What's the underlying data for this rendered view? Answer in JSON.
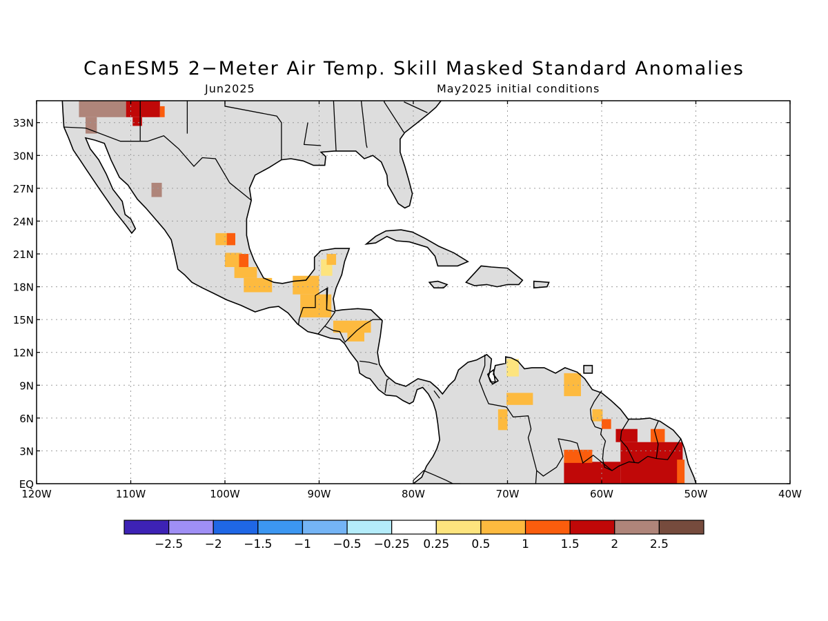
{
  "title": "CanESM5 2−Meter Air Temp. Skill Masked Standard Anomalies",
  "subtitle_left": "Jun2025",
  "subtitle_right": "May2025 initial conditions",
  "map_extent": {
    "lon": [
      -120,
      -40
    ],
    "lat": [
      0,
      35
    ]
  },
  "lat_ticks": [
    {
      "value": 33,
      "label": "33N"
    },
    {
      "value": 30,
      "label": "30N"
    },
    {
      "value": 27,
      "label": "27N"
    },
    {
      "value": 24,
      "label": "24N"
    },
    {
      "value": 21,
      "label": "21N"
    },
    {
      "value": 18,
      "label": "18N"
    },
    {
      "value": 15,
      "label": "15N"
    },
    {
      "value": 12,
      "label": "12N"
    },
    {
      "value": 9,
      "label": "9N"
    },
    {
      "value": 6,
      "label": "6N"
    },
    {
      "value": 3,
      "label": "3N"
    },
    {
      "value": 0,
      "label": "EQ"
    }
  ],
  "lon_ticks": [
    {
      "value": -120,
      "label": "120W"
    },
    {
      "value": -110,
      "label": "110W"
    },
    {
      "value": -100,
      "label": "100W"
    },
    {
      "value": -90,
      "label": "90W"
    },
    {
      "value": -80,
      "label": "80W"
    },
    {
      "value": -70,
      "label": "70W"
    },
    {
      "value": -60,
      "label": "60W"
    },
    {
      "value": -50,
      "label": "50W"
    },
    {
      "value": -40,
      "label": "40W"
    }
  ],
  "colorbar": {
    "colors": [
      "#3d22b5",
      "#9f8ff5",
      "#1f67e6",
      "#3c97f2",
      "#74b4f5",
      "#b4ecfa",
      "#ffffff",
      "#fde47e",
      "#fdba3f",
      "#fb5d0d",
      "#c00808",
      "#af857a",
      "#764b3d"
    ],
    "labels": [
      "−2.5",
      "−2",
      "−1.5",
      "−1",
      "−0.5",
      "−0.25",
      "0.25",
      "0.5",
      "1",
      "1.5",
      "2",
      "2.5"
    ]
  },
  "colors": {
    "land_masked": "#dddddd",
    "frame": "#000000",
    "grid": "#9a9a9a"
  },
  "anomaly_cells": [
    {
      "lon": -115.5,
      "lat": 33.5,
      "w": 5,
      "h": 1.5,
      "color": "#af857a"
    },
    {
      "lon": -114.8,
      "lat": 32.0,
      "w": 1.2,
      "h": 1.5,
      "color": "#af857a"
    },
    {
      "lon": -110.5,
      "lat": 33.5,
      "w": 3.6,
      "h": 1.5,
      "color": "#c00808"
    },
    {
      "lon": -109.8,
      "lat": 32.7,
      "w": 1.0,
      "h": 0.8,
      "color": "#c00808"
    },
    {
      "lon": -106.9,
      "lat": 33.5,
      "w": 0.5,
      "h": 1.0,
      "color": "#fb5d0d"
    },
    {
      "lon": -107.8,
      "lat": 26.2,
      "w": 1.1,
      "h": 1.3,
      "color": "#af857a"
    },
    {
      "lon": -101.0,
      "lat": 21.8,
      "w": 2.0,
      "h": 1.1,
      "color": "#fdba3f"
    },
    {
      "lon": -99.8,
      "lat": 21.8,
      "w": 0.9,
      "h": 1.1,
      "color": "#fb5d0d"
    },
    {
      "lon": -100.0,
      "lat": 19.8,
      "w": 1.8,
      "h": 1.3,
      "color": "#fdba3f"
    },
    {
      "lon": -99.0,
      "lat": 18.8,
      "w": 2.4,
      "h": 1.0,
      "color": "#fdba3f"
    },
    {
      "lon": -98.5,
      "lat": 19.8,
      "w": 1.0,
      "h": 1.2,
      "color": "#fb5d0d"
    },
    {
      "lon": -98.0,
      "lat": 17.5,
      "w": 3.0,
      "h": 1.3,
      "color": "#fdba3f"
    },
    {
      "lon": -92.8,
      "lat": 17.3,
      "w": 2.8,
      "h": 1.7,
      "color": "#fdba3f"
    },
    {
      "lon": -92.0,
      "lat": 15.2,
      "w": 3.3,
      "h": 2.1,
      "color": "#fdba3f"
    },
    {
      "lon": -89.8,
      "lat": 19.0,
      "w": 1.2,
      "h": 1.5,
      "color": "#fde47e"
    },
    {
      "lon": -89.2,
      "lat": 20.0,
      "w": 1.0,
      "h": 1.0,
      "color": "#fdba3f"
    },
    {
      "lon": -88.5,
      "lat": 13.8,
      "w": 4.0,
      "h": 1.1,
      "color": "#fdba3f"
    },
    {
      "lon": -87.0,
      "lat": 13.0,
      "w": 1.8,
      "h": 0.9,
      "color": "#fdba3f"
    },
    {
      "lon": -70.1,
      "lat": 9.8,
      "w": 1.3,
      "h": 1.6,
      "color": "#fde47e"
    },
    {
      "lon": -70.1,
      "lat": 7.2,
      "w": 2.8,
      "h": 1.1,
      "color": "#fdba3f"
    },
    {
      "lon": -71.0,
      "lat": 4.9,
      "w": 1.0,
      "h": 1.9,
      "color": "#fdba3f"
    },
    {
      "lon": -64.0,
      "lat": 8.0,
      "w": 1.8,
      "h": 2.1,
      "color": "#fdba3f"
    },
    {
      "lon": -61.0,
      "lat": 5.7,
      "w": 1.1,
      "h": 1.1,
      "color": "#fdba3f"
    },
    {
      "lon": -60.0,
      "lat": 5.0,
      "w": 1.0,
      "h": 0.9,
      "color": "#fb5d0d"
    },
    {
      "lon": -58.5,
      "lat": 3.8,
      "w": 2.3,
      "h": 1.2,
      "color": "#c00808"
    },
    {
      "lon": -54.8,
      "lat": 3.8,
      "w": 1.5,
      "h": 1.2,
      "color": "#fb5d0d"
    },
    {
      "lon": -58.0,
      "lat": 0,
      "w": 6.6,
      "h": 3.8,
      "color": "#c00808"
    },
    {
      "lon": -64.0,
      "lat": 0,
      "w": 6.0,
      "h": 2.0,
      "color": "#c00808"
    },
    {
      "lon": -64.0,
      "lat": 1.9,
      "w": 3.0,
      "h": 1.2,
      "color": "#fb5d0d"
    },
    {
      "lon": -52.0,
      "lat": 0,
      "w": 0.8,
      "h": 2.2,
      "color": "#fb5d0d"
    }
  ]
}
